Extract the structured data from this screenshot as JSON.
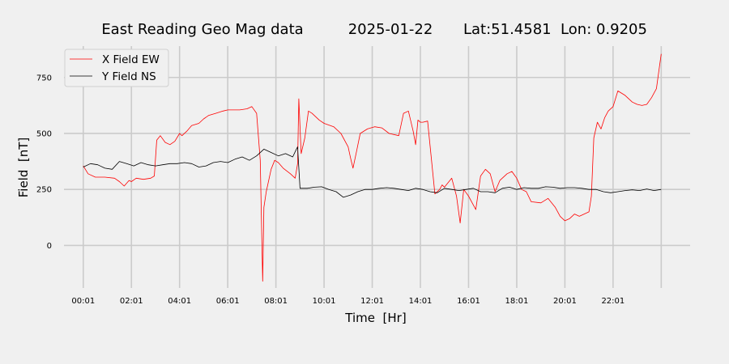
{
  "chart_data": {
    "type": "line",
    "title": {
      "main": "East Reading Geo Mag data",
      "date": "2025-01-22",
      "location": "Lat:51.4581  Lon: 0.9205"
    },
    "xlabel": "Time  [Hr]",
    "ylabel": "Field  [nT]",
    "x_unit": "hours since 00:01",
    "xlim": [
      -0.8,
      25.2
    ],
    "ylim": [
      -190,
      890
    ],
    "x_ticks": [
      0,
      2,
      4,
      6,
      8,
      10,
      12,
      14,
      16,
      18,
      20,
      22,
      24
    ],
    "x_tick_labels": [
      "00:01",
      "02:01",
      "04:01",
      "06:01",
      "08:01",
      "10:01",
      "12:01",
      "14:01",
      "16:01",
      "18:01",
      "20:01",
      "22:01",
      ""
    ],
    "y_ticks": [
      0,
      250,
      500,
      750
    ],
    "y_tick_labels": [
      "0",
      "250",
      "500",
      "750"
    ],
    "grid": true,
    "legend_position": "top-left",
    "colors": {
      "background": "#f0f0f0",
      "grid": "#cbcbcb",
      "x_series": "#ff0000",
      "y_series": "#000000"
    },
    "series": [
      {
        "name": "X Field EW",
        "color": "#ff0000",
        "x": [
          0,
          0.2,
          0.5,
          0.9,
          1.3,
          1.5,
          1.7,
          1.9,
          2.0,
          2.2,
          2.5,
          2.8,
          2.95,
          3.05,
          3.2,
          3.4,
          3.6,
          3.8,
          4.0,
          4.1,
          4.3,
          4.5,
          4.8,
          5.0,
          5.2,
          5.5,
          5.8,
          6.0,
          6.5,
          6.8,
          7.0,
          7.2,
          7.35,
          7.45,
          7.5,
          7.6,
          7.8,
          7.95,
          8.1,
          8.3,
          8.6,
          8.8,
          8.9,
          8.95,
          9.05,
          9.2,
          9.35,
          9.5,
          9.8,
          10.0,
          10.4,
          10.7,
          11.0,
          11.1,
          11.2,
          11.35,
          11.5,
          11.8,
          12.1,
          12.4,
          12.7,
          13.1,
          13.3,
          13.5,
          13.7,
          13.8,
          13.9,
          14.0,
          14.1,
          14.3,
          14.6,
          14.8,
          14.9,
          15.0,
          15.3,
          15.5,
          15.65,
          15.8,
          16.0,
          16.3,
          16.5,
          16.7,
          16.9,
          17.1,
          17.3,
          17.6,
          17.8,
          18.0,
          18.2,
          18.4,
          18.6,
          19.0,
          19.3,
          19.6,
          19.8,
          20.0,
          20.2,
          20.4,
          20.6,
          20.8,
          21.0,
          21.1,
          21.2,
          21.35,
          21.5,
          21.65,
          21.8,
          22.0,
          22.2,
          22.5,
          22.8,
          23.0,
          23.2,
          23.4,
          23.6,
          23.8,
          24.0
        ],
        "y": [
          355,
          320,
          305,
          305,
          300,
          285,
          265,
          290,
          285,
          300,
          295,
          300,
          310,
          470,
          490,
          460,
          450,
          465,
          500,
          490,
          510,
          535,
          545,
          565,
          580,
          590,
          600,
          605,
          605,
          610,
          620,
          590,
          380,
          -160,
          170,
          240,
          340,
          380,
          370,
          345,
          320,
          300,
          365,
          655,
          410,
          480,
          600,
          590,
          560,
          545,
          530,
          500,
          440,
          390,
          345,
          420,
          500,
          520,
          530,
          525,
          500,
          490,
          590,
          600,
          510,
          450,
          560,
          550,
          550,
          555,
          230,
          250,
          270,
          260,
          300,
          220,
          100,
          250,
          220,
          160,
          310,
          340,
          320,
          240,
          290,
          320,
          330,
          300,
          250,
          240,
          195,
          190,
          210,
          170,
          130,
          110,
          120,
          140,
          130,
          140,
          150,
          220,
          480,
          550,
          520,
          570,
          600,
          620,
          690,
          670,
          640,
          630,
          625,
          630,
          660,
          700,
          855
        ]
      },
      {
        "name": "Y Field NS",
        "color": "#000000",
        "x": [
          0,
          0.3,
          0.6,
          0.9,
          1.2,
          1.5,
          1.8,
          2.1,
          2.4,
          2.7,
          3.0,
          3.3,
          3.6,
          3.9,
          4.2,
          4.5,
          4.8,
          5.1,
          5.4,
          5.7,
          6.0,
          6.3,
          6.6,
          6.9,
          7.2,
          7.5,
          7.8,
          8.1,
          8.4,
          8.7,
          8.85,
          8.9,
          9.0,
          9.3,
          9.6,
          9.9,
          10.2,
          10.5,
          10.8,
          11.1,
          11.4,
          11.7,
          12.0,
          12.3,
          12.6,
          12.9,
          13.2,
          13.5,
          13.8,
          14.1,
          14.4,
          14.7,
          15.0,
          15.3,
          15.6,
          15.9,
          16.2,
          16.5,
          16.8,
          17.1,
          17.4,
          17.7,
          18.0,
          18.3,
          18.6,
          18.9,
          19.2,
          19.5,
          19.8,
          20.1,
          20.4,
          20.7,
          21.0,
          21.3,
          21.6,
          21.9,
          22.2,
          22.5,
          22.8,
          23.1,
          23.4,
          23.7,
          24.0
        ],
        "y": [
          350,
          365,
          360,
          345,
          340,
          375,
          365,
          355,
          370,
          360,
          355,
          360,
          365,
          365,
          370,
          365,
          350,
          355,
          370,
          375,
          370,
          385,
          395,
          380,
          400,
          430,
          415,
          400,
          410,
          395,
          430,
          440,
          255,
          255,
          260,
          262,
          250,
          240,
          215,
          225,
          240,
          250,
          250,
          255,
          258,
          255,
          250,
          245,
          255,
          250,
          240,
          235,
          255,
          250,
          245,
          250,
          255,
          240,
          240,
          235,
          255,
          260,
          250,
          258,
          255,
          255,
          262,
          260,
          255,
          258,
          258,
          255,
          250,
          250,
          240,
          235,
          240,
          245,
          248,
          245,
          252,
          245,
          250
        ]
      }
    ]
  }
}
